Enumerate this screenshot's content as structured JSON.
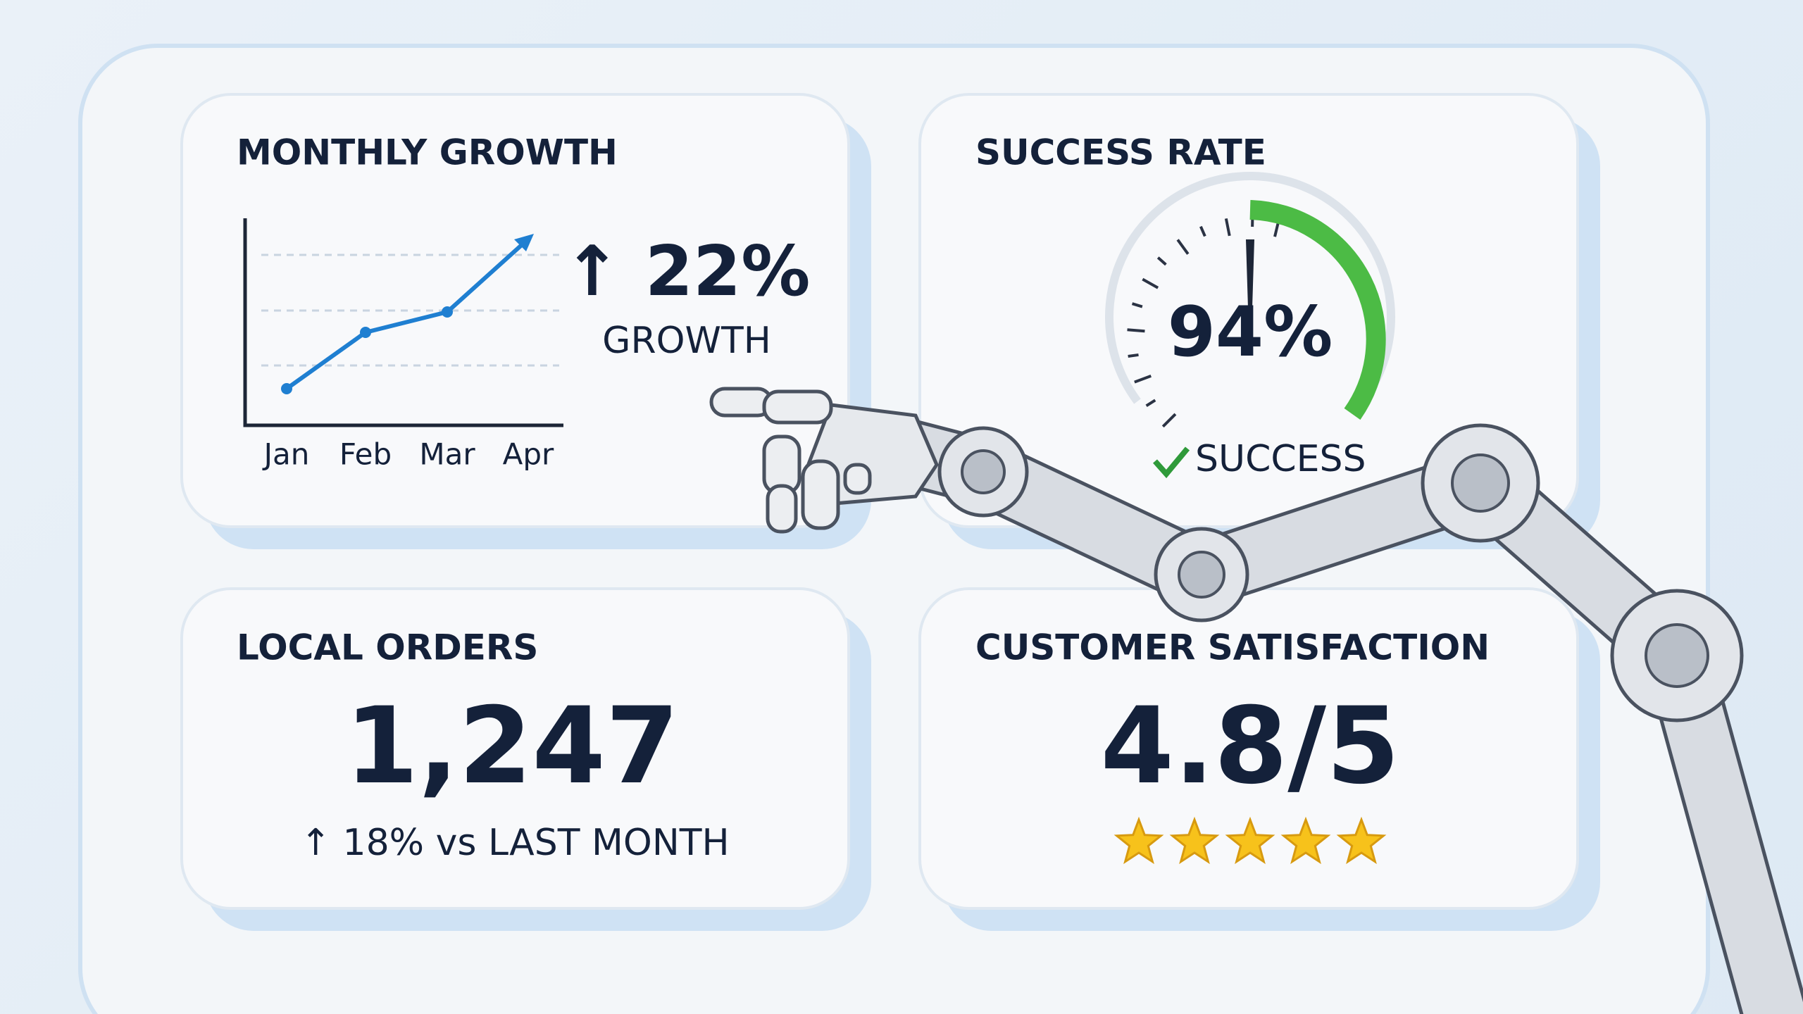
{
  "cards": [
    {
      "title": "MONTHLY GROWTH",
      "categories": [
        "Jan",
        "Feb",
        "Mar",
        "Apr"
      ],
      "change": "↑ 22%",
      "caption": "GROWTH"
    },
    {
      "title": "SUCCESS RATE",
      "value": "94%",
      "status": "SUCCESS"
    },
    {
      "title": "LOCAL ORDERS",
      "value": "1,247",
      "change": "↑ 18% vs LAST MONTH"
    },
    {
      "title": "CUSTOMER SATISFACTION",
      "value": "4.8/5"
    }
  ]
}
